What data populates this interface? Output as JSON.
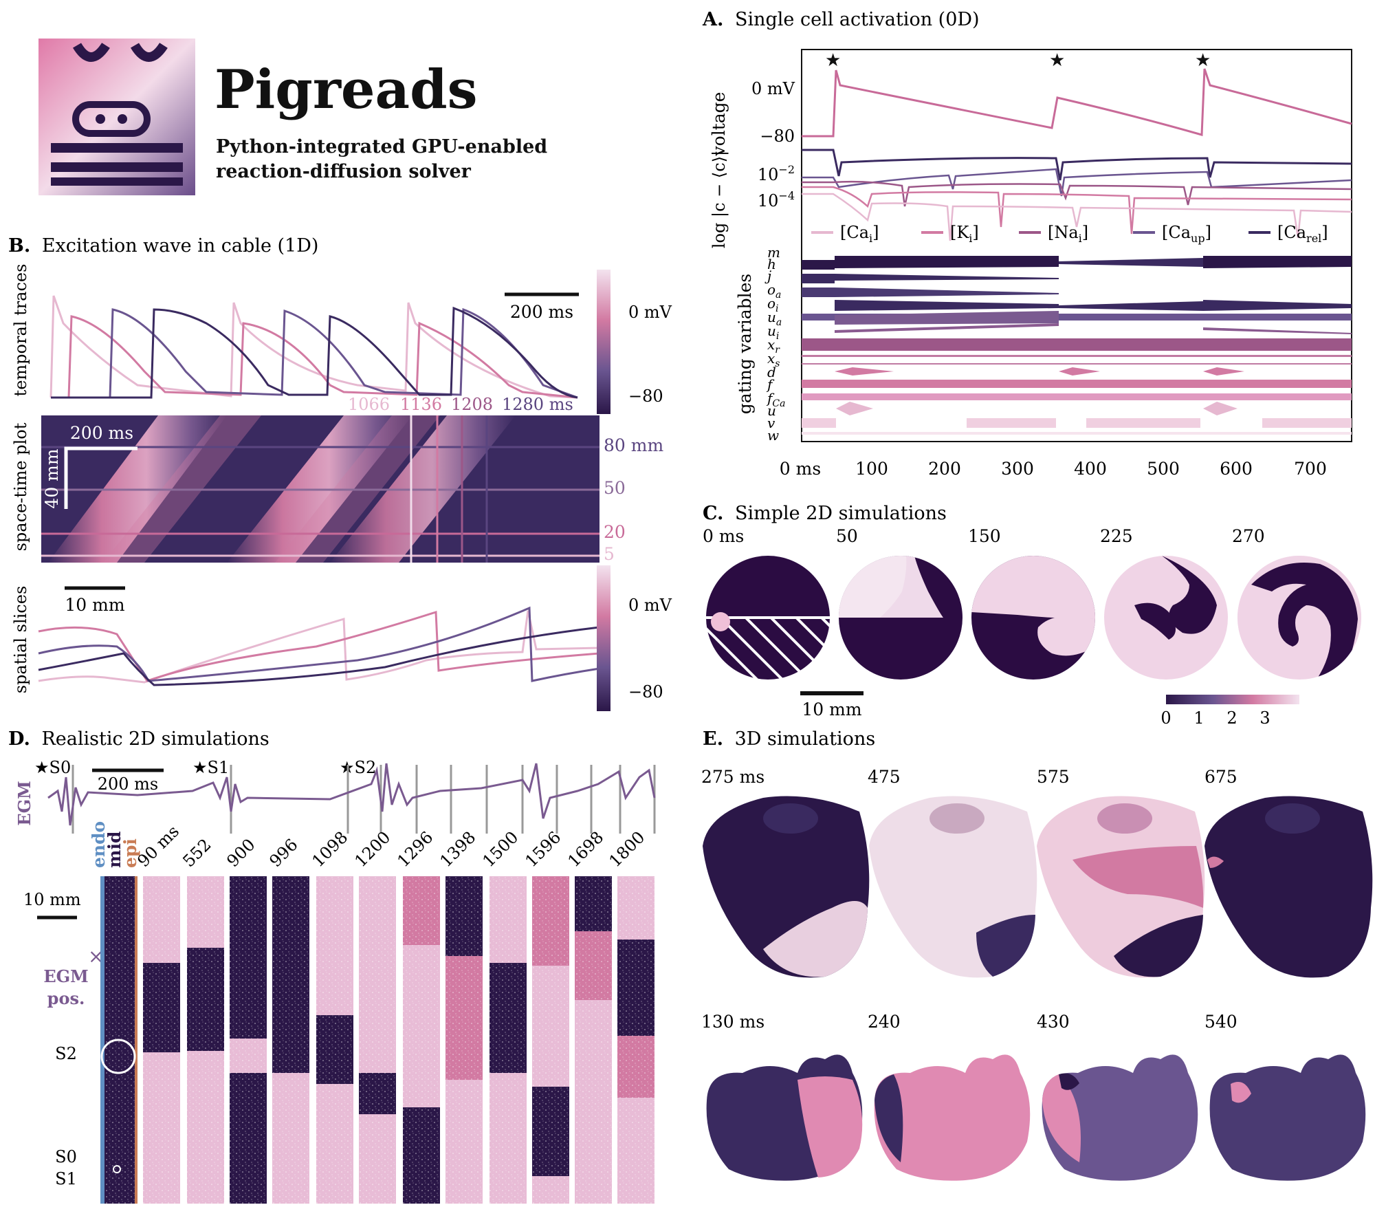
{
  "header": {
    "title": "Pigreads",
    "subtitle_line1": "Python-integrated GPU-enabled",
    "subtitle_line2": "reaction-diffusion solver"
  },
  "colors": {
    "dark": "#2b1748",
    "dark2": "#4a3a72",
    "mid_purple": "#7a5a90",
    "mauve": "#9c5788",
    "pink": "#d27aa2",
    "light_pink": "#e6b8d0",
    "pale": "#f0dcea",
    "endo_blue": "#5f8fc3",
    "epi_orange": "#c97c55"
  },
  "panelA": {
    "letter": "A.",
    "title": "Single cell activation (0D)",
    "voltage_label": "voltage",
    "voltage_ticks": [
      "0 mV",
      "−80"
    ],
    "log_label": "log |c − ⟨c⟩|",
    "log_ticks": [
      "10",
      "10"
    ],
    "log_tick_exps": [
      "−2",
      "−4"
    ],
    "legend": [
      {
        "base": "[Ca",
        "sub": "i",
        "end": "]",
        "color": "#e6b8d0"
      },
      {
        "base": "[K",
        "sub": "i",
        "end": "]",
        "color": "#d27aa2"
      },
      {
        "base": "[Na",
        "sub": "i",
        "end": "]",
        "color": "#9c5788"
      },
      {
        "base": "[Ca",
        "sub": "up",
        "end": "]",
        "color": "#6a5590"
      },
      {
        "base": "[Ca",
        "sub": "rel",
        "end": "]",
        "color": "#3a2a60"
      }
    ],
    "gating_label": "gating variables",
    "gating_vars": [
      {
        "base": "m",
        "sub": ""
      },
      {
        "base": "h",
        "sub": ""
      },
      {
        "base": "j",
        "sub": ""
      },
      {
        "base": "o",
        "sub": "a"
      },
      {
        "base": "o",
        "sub": "i"
      },
      {
        "base": "u",
        "sub": "a"
      },
      {
        "base": "u",
        "sub": "i"
      },
      {
        "base": "x",
        "sub": "r"
      },
      {
        "base": "x",
        "sub": "s"
      },
      {
        "base": "d",
        "sub": ""
      },
      {
        "base": "f",
        "sub": ""
      },
      {
        "base": "f",
        "sub": "Ca"
      },
      {
        "base": "u",
        "sub": ""
      },
      {
        "base": "v",
        "sub": ""
      },
      {
        "base": "w",
        "sub": ""
      }
    ],
    "x_ticks": [
      "0 ms",
      "100",
      "200",
      "300",
      "400",
      "500",
      "600",
      "700"
    ],
    "stim_marker": "★"
  },
  "panelB": {
    "letter": "B.",
    "title": "Excitation wave in cable (1D)",
    "row_labels": [
      "temporal traces",
      "space-time plot",
      "spatial slices"
    ],
    "scalebar_time": "200 ms",
    "colorbar_ticks": [
      "0 mV",
      "−80"
    ],
    "trace_times": [
      {
        "label": "1066",
        "color": "#e6b8d0"
      },
      {
        "label": "1136",
        "color": "#d27aa2"
      },
      {
        "label": "1208",
        "color": "#9c5788"
      },
      {
        "label": "1280 ms",
        "color": "#5a4580"
      }
    ],
    "spacetime_scale_time": "200 ms",
    "spacetime_scale_space": "40 mm",
    "position_labels": [
      {
        "label": "80 mm",
        "color": "#5a4580"
      },
      {
        "label": "50",
        "color": "#8a6a98"
      },
      {
        "label": "20",
        "color": "#c86a98"
      },
      {
        "label": "5",
        "color": "#e6b8d0"
      }
    ],
    "slice_scalebar": "10 mm"
  },
  "panelC": {
    "letter": "C.",
    "title": "Simple 2D simulations",
    "times": [
      "0 ms",
      "50",
      "150",
      "225",
      "270"
    ],
    "scalebar": "10 mm",
    "colorbar_ticks": [
      "0",
      "1",
      "2",
      "3"
    ]
  },
  "panelD": {
    "letter": "D.",
    "title": "Realistic 2D simulations",
    "egm_label": "EGM",
    "stimuli": [
      "★S0",
      "★S1",
      "★S2"
    ],
    "scalebar_time": "200 ms",
    "layers": [
      {
        "label": "endo",
        "color": "#5f8fc3"
      },
      {
        "label": "mid",
        "color": "#2b1748"
      },
      {
        "label": "epi",
        "color": "#c97c55"
      }
    ],
    "frame_times": [
      "90 ms",
      "552",
      "900",
      "996",
      "1098",
      "1200",
      "1296",
      "1398",
      "1500",
      "1596",
      "1698",
      "1800"
    ],
    "scalebar_space": "10 mm",
    "egm_pos_label_1": "EGM",
    "egm_pos_label_2": "pos.",
    "s2_label": "S2",
    "s0_label": "S0",
    "s1_label": "S1"
  },
  "panelE": {
    "letter": "E.",
    "title": "3D simulations",
    "ventricle_times": [
      "275 ms",
      "475",
      "575",
      "675"
    ],
    "atria_times": [
      "130 ms",
      "240",
      "430",
      "540"
    ]
  }
}
